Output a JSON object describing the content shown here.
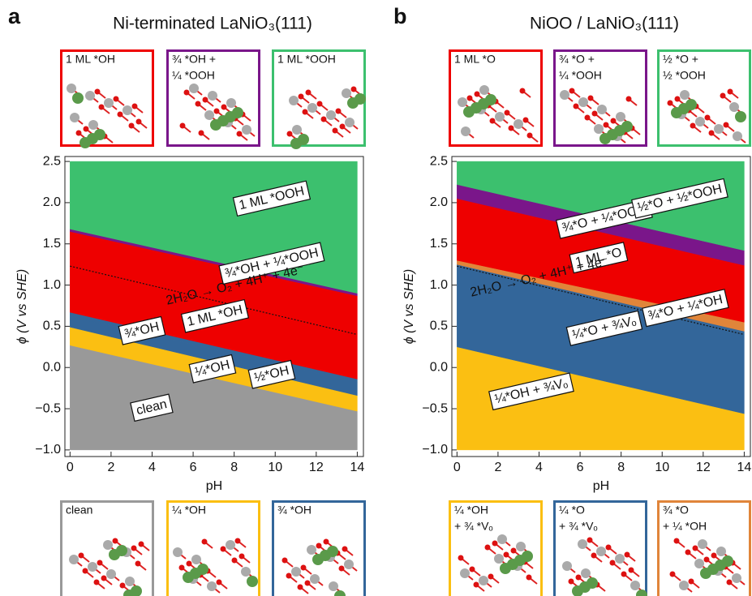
{
  "chart_data": [
    {
      "type": "area",
      "panel_label": "a",
      "title": "Ni-terminated LaNiO₃(111)",
      "xlabel": "pH",
      "ylabel": "ϕ (V vs SHE)",
      "x": [
        0,
        14
      ],
      "floor": -1.0,
      "series": [
        {
          "name": "clean",
          "color": "#999999",
          "values": [
            0.27,
            -0.53
          ]
        },
        {
          "name": "¼*OH",
          "color": "#fbbf12",
          "values": [
            0.49,
            -0.34
          ]
        },
        {
          "name": "½*OH",
          "color": "#33669a",
          "values": [
            0.62,
            -0.18
          ]
        },
        {
          "name": "¾*OH",
          "color": "#33669a",
          "values": [
            0.67,
            -0.14
          ]
        },
        {
          "name": "1 ML *OH",
          "color": "#ee0000",
          "values": [
            1.65,
            0.87
          ]
        },
        {
          "name": "¾*OH + ¼*OOH",
          "color": "#7a168a",
          "values": [
            1.68,
            0.9
          ]
        },
        {
          "name": "1 ML *OOH",
          "color": "#3cc06e",
          "values": [
            2.5,
            2.5
          ]
        }
      ],
      "reference_line": {
        "label": "2H₂O → O₂ + 4H⁺ + 4e⁻",
        "values": [
          1.23,
          0.4
        ]
      },
      "xlim": [
        -0.25,
        14.3
      ],
      "ylim": [
        -1.08,
        2.56
      ],
      "xticks": [
        0,
        2,
        4,
        6,
        8,
        10,
        12,
        14
      ],
      "yticks": [
        {
          "value": -1.0,
          "label": "−1.0"
        },
        {
          "value": -0.5,
          "label": "−0.5"
        },
        {
          "value": 0.0,
          "label": "0.0"
        },
        0.5,
        {
          "value": 1.0,
          "label": "1.0"
        },
        1.5,
        {
          "value": 2.0,
          "label": "2.0"
        },
        2.5
      ],
      "structures_top": [
        {
          "label": [
            "1 ML *OH"
          ],
          "color": "#ee0000"
        },
        {
          "label": [
            "¾ *OH +",
            "¼ *OOH"
          ],
          "color": "#7a168a"
        },
        {
          "label": [
            "1 ML *OOH"
          ],
          "color": "#3cc06e"
        }
      ],
      "structures_bottom": [
        {
          "label": [
            "clean"
          ],
          "color": "#999999"
        },
        {
          "label": [
            "¼ *OH"
          ],
          "color": "#fbbf12"
        },
        {
          "label": [
            "¾ *OH"
          ],
          "color": "#33669a"
        }
      ]
    },
    {
      "type": "area",
      "panel_label": "b",
      "title": "NiOO / LaNiO₃(111)",
      "xlabel": "pH",
      "ylabel": "ϕ (V vs SHE)",
      "x": [
        0,
        14
      ],
      "floor": -1.0,
      "series": [
        {
          "name": "¼*OH + ¾Vₒ",
          "color": "#fbbf12",
          "values": [
            0.25,
            -0.56
          ]
        },
        {
          "name": "¼*O + ¾Vₒ",
          "color": "#33669a",
          "values": [
            1.25,
            0.44
          ]
        },
        {
          "name": "¾*O + ¼*OH",
          "color": "#e0853a",
          "values": [
            1.3,
            0.55
          ]
        },
        {
          "name": "1 ML *O",
          "color": "#ee0000",
          "values": [
            2.05,
            1.24
          ]
        },
        {
          "name": "¾*O + ¼*OOH",
          "color": "#7a168a",
          "values": [
            2.22,
            1.42
          ]
        },
        {
          "name": "½*O + ½*OOH",
          "color": "#3cc06e",
          "values": [
            2.5,
            2.5
          ]
        }
      ],
      "reference_line": {
        "label": "2H₂O → O₂ + 4H⁺ + 4e⁻",
        "values": [
          1.23,
          0.4
        ]
      },
      "xlim": [
        -0.25,
        14.3
      ],
      "ylim": [
        -1.08,
        2.56
      ],
      "xticks": [
        0,
        2,
        4,
        6,
        8,
        10,
        12,
        14
      ],
      "yticks": [
        {
          "value": -1.0,
          "label": "−1.0"
        },
        {
          "value": -0.5,
          "label": "−0.5"
        },
        {
          "value": 0.0,
          "label": "0.0"
        },
        0.5,
        {
          "value": 1.0,
          "label": "1.0"
        },
        1.5,
        {
          "value": 2.0,
          "label": "2.0"
        },
        2.5
      ],
      "structures_top": [
        {
          "label": [
            "1 ML *O"
          ],
          "color": "#ee0000"
        },
        {
          "label": [
            "¾ *O +",
            "¼ *OOH"
          ],
          "color": "#7a168a"
        },
        {
          "label": [
            "½ *O +",
            "½ *OOH"
          ],
          "color": "#3cc06e"
        }
      ],
      "structures_bottom": [
        {
          "label": [
            "¼ *OH",
            "+ ¾ *Vₒ"
          ],
          "color": "#fbbf12"
        },
        {
          "label": [
            "¼ *O",
            "+ ¾ *Vₒ"
          ],
          "color": "#33669a"
        },
        {
          "label": [
            "¾ *O",
            "+ ¼ *OH"
          ],
          "color": "#e0853a"
        }
      ]
    }
  ]
}
